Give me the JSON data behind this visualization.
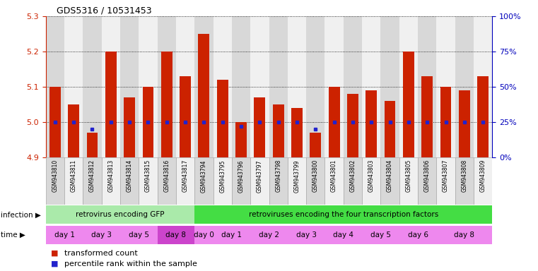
{
  "title": "GDS5316 / 10531453",
  "samples": [
    "GSM943810",
    "GSM943811",
    "GSM943812",
    "GSM943813",
    "GSM943814",
    "GSM943815",
    "GSM943816",
    "GSM943817",
    "GSM943794",
    "GSM943795",
    "GSM943796",
    "GSM943797",
    "GSM943798",
    "GSM943799",
    "GSM943800",
    "GSM943801",
    "GSM943802",
    "GSM943803",
    "GSM943804",
    "GSM943805",
    "GSM943806",
    "GSM943807",
    "GSM943808",
    "GSM943809"
  ],
  "transformed_count": [
    5.1,
    5.05,
    4.97,
    5.2,
    5.07,
    5.1,
    5.2,
    5.13,
    5.25,
    5.12,
    5.0,
    5.07,
    5.05,
    5.04,
    4.97,
    5.1,
    5.08,
    5.09,
    5.06,
    5.2,
    5.13,
    5.1,
    5.09,
    5.13
  ],
  "percentile_rank": [
    25,
    25,
    20,
    25,
    25,
    25,
    25,
    25,
    25,
    25,
    22,
    25,
    25,
    25,
    20,
    25,
    25,
    25,
    25,
    25,
    25,
    25,
    25,
    25
  ],
  "ylim": [
    4.9,
    5.3
  ],
  "yticks": [
    4.9,
    5.0,
    5.1,
    5.2,
    5.3
  ],
  "right_yticks": [
    0,
    25,
    50,
    75,
    100
  ],
  "bar_color": "#cc2200",
  "dot_color": "#2222cc",
  "infection_groups": [
    {
      "label": "retrovirus encoding GFP",
      "start": 0,
      "end": 8,
      "color": "#aaeaaa"
    },
    {
      "label": "retroviruses encoding the four transcription factors",
      "start": 8,
      "end": 24,
      "color": "#44dd44"
    }
  ],
  "time_groups": [
    {
      "label": "day 1",
      "start": 0,
      "end": 2,
      "color": "#ee88ee"
    },
    {
      "label": "day 3",
      "start": 2,
      "end": 4,
      "color": "#ee88ee"
    },
    {
      "label": "day 5",
      "start": 4,
      "end": 6,
      "color": "#ee88ee"
    },
    {
      "label": "day 8",
      "start": 6,
      "end": 8,
      "color": "#cc44cc"
    },
    {
      "label": "day 0",
      "start": 8,
      "end": 9,
      "color": "#ee88ee"
    },
    {
      "label": "day 1",
      "start": 9,
      "end": 11,
      "color": "#ee88ee"
    },
    {
      "label": "day 2",
      "start": 11,
      "end": 13,
      "color": "#ee88ee"
    },
    {
      "label": "day 3",
      "start": 13,
      "end": 15,
      "color": "#ee88ee"
    },
    {
      "label": "day 4",
      "start": 15,
      "end": 17,
      "color": "#ee88ee"
    },
    {
      "label": "day 5",
      "start": 17,
      "end": 19,
      "color": "#ee88ee"
    },
    {
      "label": "day 6",
      "start": 19,
      "end": 21,
      "color": "#ee88ee"
    },
    {
      "label": "day 8",
      "start": 21,
      "end": 24,
      "color": "#ee88ee"
    }
  ],
  "legend_items": [
    {
      "label": "transformed count",
      "color": "#cc2200"
    },
    {
      "label": "percentile rank within the sample",
      "color": "#2222cc"
    }
  ],
  "background_color": "#ffffff",
  "left_axis_color": "#cc2200",
  "right_axis_color": "#0000bb",
  "cell_colors": [
    "#d8d8d8",
    "#f0f0f0"
  ]
}
